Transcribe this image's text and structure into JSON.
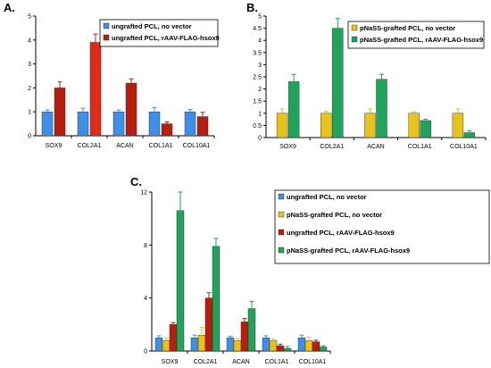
{
  "colors": {
    "ungrafted_no_vector": "#3f8fe8",
    "ungrafted_hsox9": "#b81e10",
    "pnass_no_vector": "#e6c21a",
    "pnass_hsox9": "#20a35a",
    "col2a1_hsox9_bar": "#e02a1a"
  },
  "chart_data": [
    {
      "panel": "A.",
      "type": "bar",
      "categories": [
        "SOX9",
        "COL2A1",
        "ACAN",
        "COL1A1",
        "COL10A1"
      ],
      "ylim": [
        0,
        5
      ],
      "yticks": [
        0,
        1,
        2,
        3,
        4,
        5
      ],
      "legend_position": "top-right",
      "series": [
        {
          "name": "ungrafted PCL, no vector",
          "color": "#3f8fe8",
          "values": [
            1.0,
            1.0,
            1.0,
            1.0,
            1.0
          ],
          "errors": [
            0.08,
            0.15,
            0.08,
            0.18,
            0.1
          ]
        },
        {
          "name": "ungrafted PCL, rAAV-FLAG-hsox9",
          "color": "#b81e10",
          "values": [
            2.0,
            3.9,
            2.2,
            0.5,
            0.8
          ],
          "errors": [
            0.25,
            0.35,
            0.18,
            0.08,
            0.18
          ]
        }
      ]
    },
    {
      "panel": "B.",
      "type": "bar",
      "categories": [
        "SOX9",
        "COL2A1",
        "ACAN",
        "COL1A1",
        "COL10A1"
      ],
      "ylim": [
        0,
        5
      ],
      "yticks": [
        0,
        0.5,
        1,
        1.5,
        2,
        2.5,
        3,
        3.5,
        4,
        4.5,
        5
      ],
      "legend_position": "top-right",
      "series": [
        {
          "name": "pNaSS-grafted PCL, no vector",
          "color": "#e6c21a",
          "values": [
            1.0,
            1.0,
            1.0,
            1.0,
            1.0
          ],
          "errors": [
            0.18,
            0.08,
            0.18,
            0.06,
            0.18
          ]
        },
        {
          "name": "pNaSS-grafted PCL, rAAV-FLAG-hsox9",
          "color": "#20a35a",
          "values": [
            2.3,
            4.5,
            2.4,
            0.7,
            0.2
          ],
          "errors": [
            0.3,
            0.4,
            0.2,
            0.06,
            0.08
          ]
        }
      ]
    },
    {
      "panel": "C.",
      "type": "bar",
      "categories": [
        "SOX9",
        "COL2A1",
        "ACAN",
        "COL1A1",
        "COL10A1"
      ],
      "ylim": [
        0,
        12
      ],
      "yticks": [
        0,
        4,
        8,
        12
      ],
      "legend_position": "right",
      "series": [
        {
          "name": "ungrafted PCL, no vector",
          "color": "#3f8fe8",
          "values": [
            1.0,
            1.0,
            1.0,
            1.0,
            1.0
          ],
          "errors": [
            0.15,
            0.2,
            0.12,
            0.15,
            0.2
          ]
        },
        {
          "name": "pNaSS-grafted PCL, no vector",
          "color": "#e6c21a",
          "values": [
            0.8,
            1.2,
            0.8,
            0.8,
            0.8
          ],
          "errors": [
            0.2,
            0.6,
            0.15,
            0.12,
            0.25
          ]
        },
        {
          "name": "ungrafted PCL, rAAV-FLAG-hsox9",
          "color": "#b81e10",
          "values": [
            2.0,
            4.0,
            2.2,
            0.4,
            0.7
          ],
          "errors": [
            0.15,
            0.4,
            0.25,
            0.12,
            0.12
          ]
        },
        {
          "name": "pNaSS-grafted PCL, rAAV-FLAG-hsox9",
          "color": "#20a35a",
          "values": [
            10.6,
            7.9,
            3.2,
            0.2,
            0.3
          ],
          "errors": [
            1.4,
            0.6,
            0.55,
            0.15,
            0.1
          ]
        }
      ]
    }
  ]
}
